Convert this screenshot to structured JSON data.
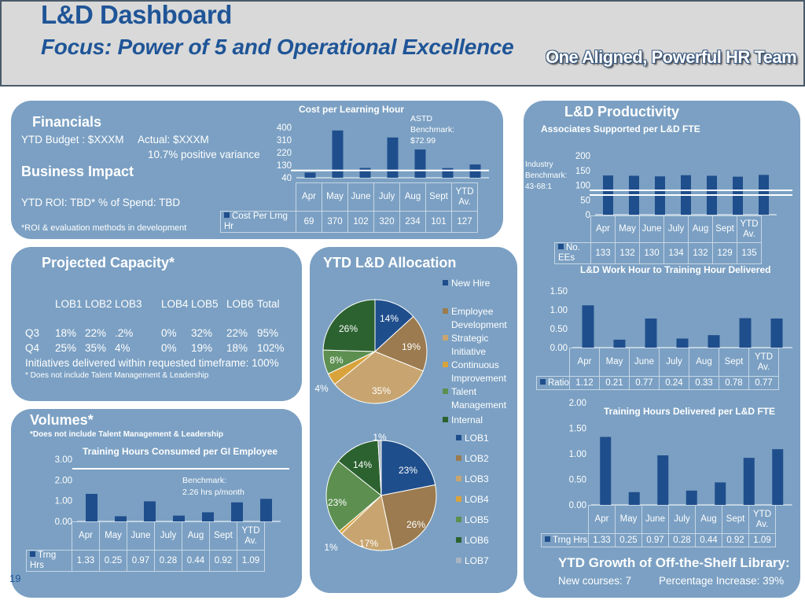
{
  "header": {
    "title": "L&D Dashboard",
    "subtitle": "Focus: Power of 5 and Operational Excellence",
    "tagline": "One Aligned, Powerful HR Team"
  },
  "page_number": "19",
  "financials": {
    "heading": "Financials",
    "budget": "YTD Budget : $XXXM",
    "actual": "Actual: $XXXM",
    "variance": "10.7% positive variance",
    "impact_heading": "Business Impact",
    "roi": "YTD ROI: TBD*  % of  Spend:  TBD",
    "footnote": "*ROI & evaluation methods in development"
  },
  "capacity": {
    "heading": "Projected Capacity*",
    "columns": [
      "LOB1",
      "LOB2",
      "LOB3",
      "LOB4",
      "LOB5",
      "LOB6",
      "Total"
    ],
    "rows": [
      {
        "label": "Q3",
        "values": [
          "18%",
          "22%",
          ".2%",
          "0%",
          "32%",
          "22%",
          "95%"
        ]
      },
      {
        "label": "Q4",
        "values": [
          "25%",
          "35%",
          "4%",
          "0%",
          "19%",
          "18%",
          "102%"
        ]
      }
    ],
    "delivered": "Initiatives delivered within requested timeframe: 100%",
    "note": "* Does not include Talent Management & Leadership"
  },
  "volumes": {
    "heading": "Volumes*",
    "note": "*Does not include Talent Management & Leadership"
  },
  "allocation": {
    "heading": "YTD L&D Allocation"
  },
  "productivity": {
    "heading": "L&D Productivity",
    "growth_heading": "YTD Growth of Off-the-Shelf Library:",
    "new_courses": "New courses:  7",
    "pct_increase": "Percentage Increase: 39%"
  },
  "chart_data": [
    {
      "id": "cost",
      "type": "bar",
      "title": "Cost per Learning Hour",
      "categories": [
        "Apr",
        "May",
        "June",
        "July",
        "Aug",
        "Sept",
        "YTD Av."
      ],
      "series": [
        {
          "name": "Cost Per Lrng Hr",
          "values": [
            69,
            370,
            102,
            320,
            234,
            101,
            127
          ]
        }
      ],
      "yticks": [
        "400",
        "310",
        "220",
        "130",
        "40"
      ],
      "benchmark": {
        "value": 72.99,
        "label": [
          "ASTD",
          "Benchmark:",
          "$72.99"
        ]
      }
    },
    {
      "id": "fte",
      "type": "bar",
      "title": "Associates Supported per L&D FTE",
      "categories": [
        "Apr",
        "May",
        "June",
        "July",
        "Aug",
        "Sept",
        "YTD Av."
      ],
      "series": [
        {
          "name": "No. EEs",
          "values": [
            133,
            132,
            130,
            134,
            132,
            129,
            135
          ]
        }
      ],
      "yticks": [
        "200",
        "150",
        "100",
        "50",
        "0"
      ],
      "ylim": [
        0,
        200
      ],
      "benchmark": {
        "label": [
          "Industry",
          "Benchmark:",
          "43-68:1"
        ]
      }
    },
    {
      "id": "ratio",
      "type": "bar",
      "title": "L&D Work Hour to Training Hour Delivered",
      "categories": [
        "Apr",
        "May",
        "June",
        "July",
        "Aug",
        "Sept",
        "YTD Av."
      ],
      "series": [
        {
          "name": "Ratio",
          "values": [
            1.12,
            0.21,
            0.77,
            0.24,
            0.33,
            0.78,
            0.77
          ]
        }
      ],
      "yticks": [
        "1.50",
        "1.00",
        "0.50",
        "0.00"
      ],
      "ylim": [
        0,
        1.5
      ]
    },
    {
      "id": "trng_fte",
      "type": "bar",
      "title": "Training Hours Delivered per L&D FTE",
      "categories": [
        "Apr",
        "May",
        "June",
        "July",
        "Aug",
        "Sept",
        "YTD Av."
      ],
      "series": [
        {
          "name": "Trng Hrs",
          "values": [
            1.33,
            0.25,
            0.97,
            0.28,
            0.44,
            0.92,
            1.09
          ]
        }
      ],
      "yticks": [
        "2.00",
        "1.50",
        "1.00",
        "0.50",
        "0.00"
      ],
      "ylim": [
        0,
        2
      ]
    },
    {
      "id": "trng_emp",
      "type": "bar",
      "title": "Training Hours Consumed per GI Employee",
      "categories": [
        "Apr",
        "May",
        "June",
        "July",
        "Aug",
        "Sept",
        "YTD Av."
      ],
      "series": [
        {
          "name": "Trng Hrs",
          "values": [
            1.33,
            0.25,
            0.97,
            0.28,
            0.44,
            0.92,
            1.09
          ]
        }
      ],
      "yticks": [
        "3.00",
        "2.00",
        "1.00",
        "0.00"
      ],
      "ylim": [
        0,
        3
      ],
      "benchmark": {
        "value": 2.26,
        "label": [
          "Benchmark:",
          "2.26 hrs p/month"
        ]
      }
    },
    {
      "id": "alloc_type",
      "type": "pie",
      "slices": [
        {
          "name": "New Hire",
          "value": 14,
          "label": "14%",
          "color": "#1f4e8c"
        },
        {
          "name": "Employee Development",
          "value": 19,
          "label": "19%",
          "color": "#9b7b4f"
        },
        {
          "name": "Strategic Initiative",
          "value": 35,
          "label": "35%",
          "color": "#c8a570"
        },
        {
          "name": "Continuous Improvement",
          "value": 4,
          "label": "4%",
          "color": "#d9a33c"
        },
        {
          "name": "Talent Management",
          "value": 8,
          "label": "8%",
          "color": "#5c8f50"
        },
        {
          "name": "Internal",
          "value": 26,
          "label": "26%",
          "color": "#2c6230"
        }
      ]
    },
    {
      "id": "alloc_lob",
      "type": "pie",
      "slices": [
        {
          "name": "LOB1",
          "value": 23,
          "label": "23%",
          "color": "#1f4e8c"
        },
        {
          "name": "LOB2",
          "value": 26,
          "label": "26%",
          "color": "#9b7b4f"
        },
        {
          "name": "LOB3",
          "value": 17,
          "label": "17%",
          "color": "#c8a570"
        },
        {
          "name": "LOB4",
          "value": 1,
          "label": "1%",
          "color": "#d9a33c"
        },
        {
          "name": "LOB5",
          "value": 23,
          "label": "23%",
          "color": "#5c8f50"
        },
        {
          "name": "LOB6",
          "value": 14,
          "label": "14%",
          "color": "#2c6230"
        },
        {
          "name": "LOB7",
          "value": 1,
          "label": "1%",
          "color": "#a8b4c2"
        }
      ]
    }
  ]
}
